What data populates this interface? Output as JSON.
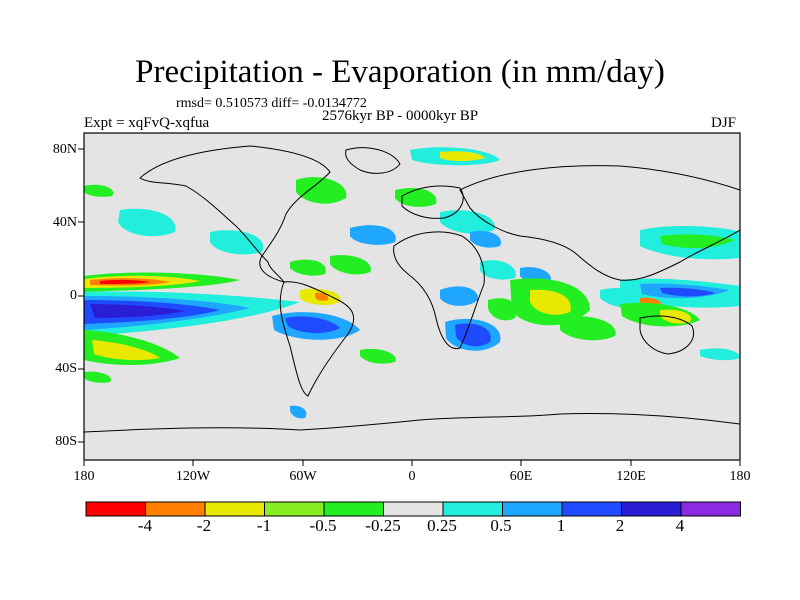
{
  "title": "Precipitation - Evaporation (in mm/day)",
  "stats": "rmsd= 0.510573  diff= -0.0134772",
  "period": "2576kyr BP - 0000kyr BP",
  "experiment": "Expt = xqFvQ-xqfua",
  "season": "DJF",
  "lat_labels": [
    "80N",
    "40N",
    "0",
    "40S",
    "80S"
  ],
  "lon_labels": [
    "180",
    "120W",
    "60W",
    "0",
    "60E",
    "120E",
    "180"
  ],
  "colorbar": {
    "labels": [
      "-4",
      "-2",
      "-1",
      "-0.5",
      "-0.25",
      "0.25",
      "0.5",
      "1",
      "2",
      "4"
    ],
    "colors": [
      "#ff0000",
      "#ff7f00",
      "#e8e800",
      "#88ee22",
      "#22ee22",
      "#e4e4e4",
      "#22eedd",
      "#1fa6ff",
      "#1f4bff",
      "#2a1dd6",
      "#8a2be2"
    ]
  },
  "colors": {
    "ocean_bg": "#e4e4e4",
    "coast": "#000000"
  }
}
